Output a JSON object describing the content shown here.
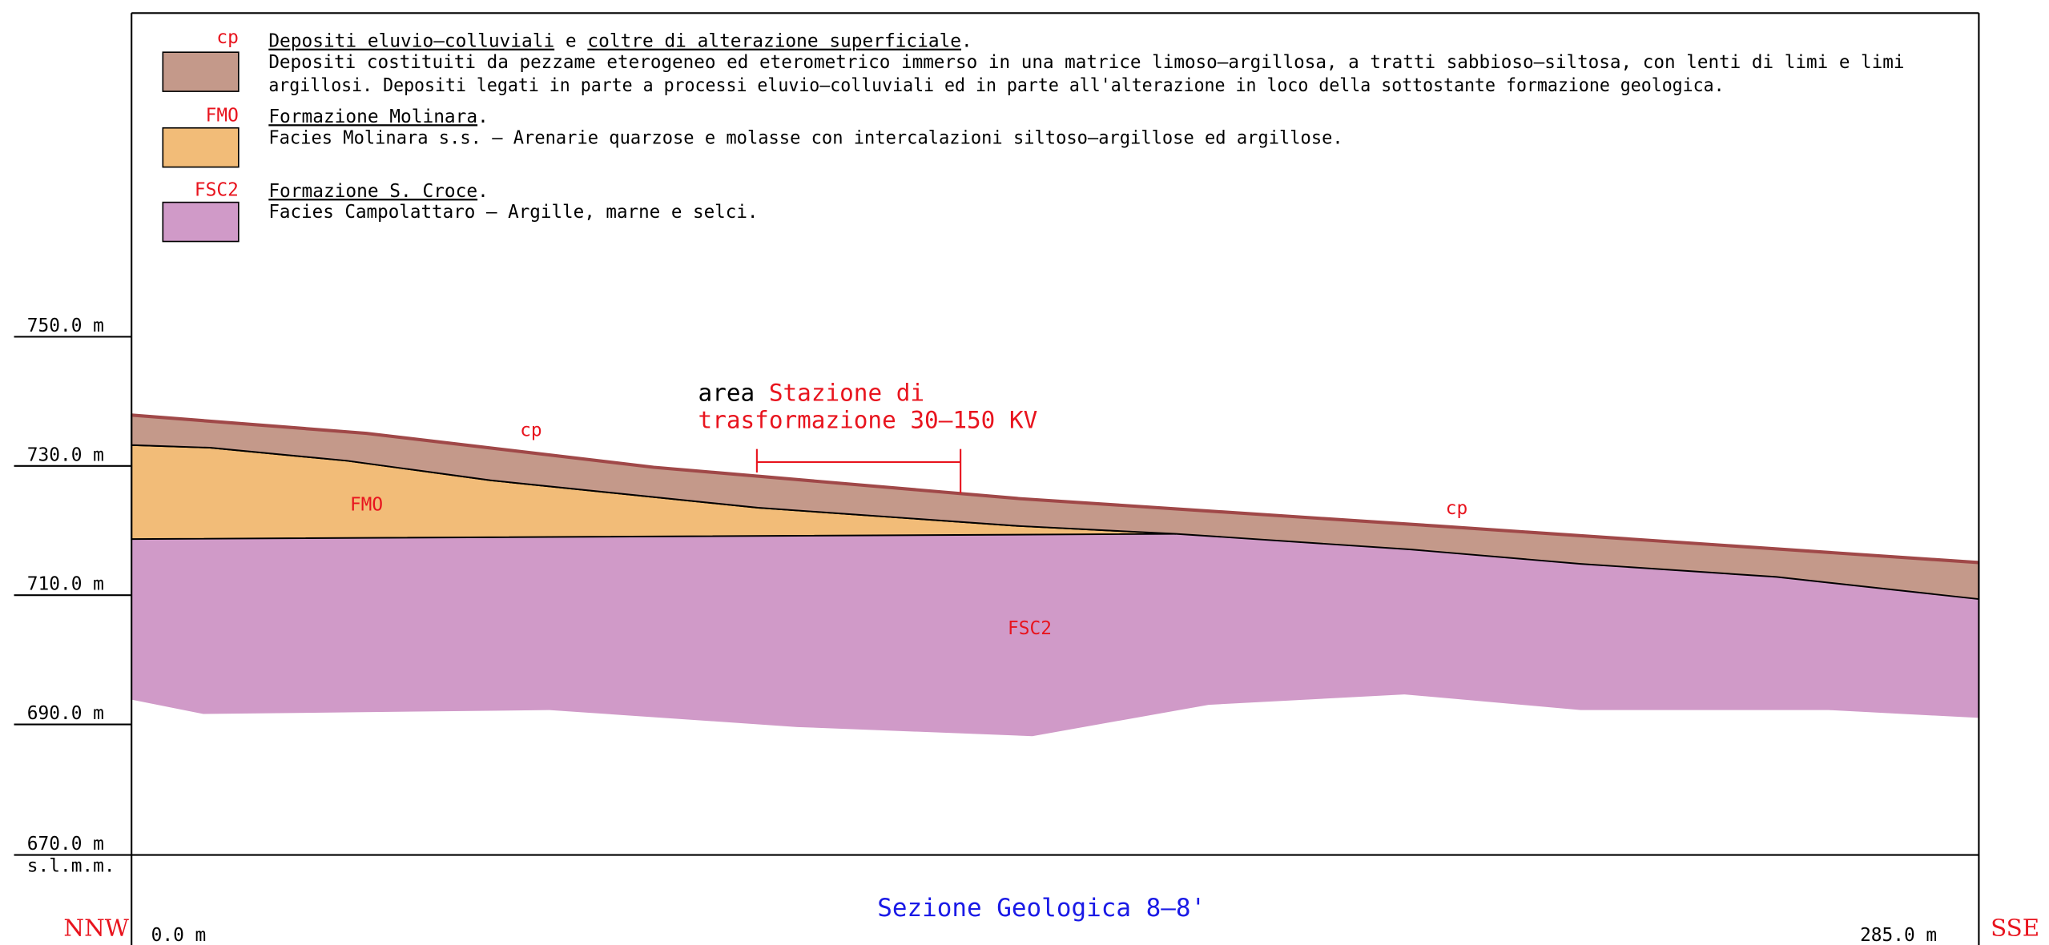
{
  "legend": [
    {
      "code": "cp",
      "title": [
        "Depositi eluvio–colluviali",
        " e ",
        "coltre di alterazione superficiale",
        "."
      ],
      "description": [
        "Depositi costituiti da pezzame eterogeneo ed eterometrico immerso in una matrice limoso–argillosa, a tratti sabbioso–siltosa, con lenti di limi e limi",
        "argillosi. Depositi legati in parte a processi eluvio–colluviali ed in parte all'alterazione in loco della sottostante formazione geologica."
      ]
    },
    {
      "code": "FMO",
      "title": [
        "Formazione Molinara",
        "."
      ],
      "description": [
        "Facies Molinara s.s. – Arenarie quarzose e molasse con intercalazioni siltoso–argillose ed argillose."
      ]
    },
    {
      "code": "FSC2",
      "title": [
        "Formazione S. Croce",
        "."
      ],
      "description": [
        "Facies Campolattaro – Argille, marne e selci."
      ]
    }
  ],
  "elevations": [
    "750.0 m",
    "730.0 m",
    "710.0 m",
    "690.0 m",
    "670.0 m"
  ],
  "datum": "s.l.m.m.",
  "orientation": {
    "left": "NNW",
    "right": "SSE"
  },
  "distances": {
    "start": "0.0 m",
    "end": "285.0 m"
  },
  "title": "Sezione Geologica 8–8'",
  "annotation": {
    "prefix": "area",
    "line1": "Stazione di",
    "line2": "trasformazione 30–150 KV"
  },
  "layer_labels": [
    "cp",
    "FMO",
    "cp",
    "FSC2"
  ]
}
